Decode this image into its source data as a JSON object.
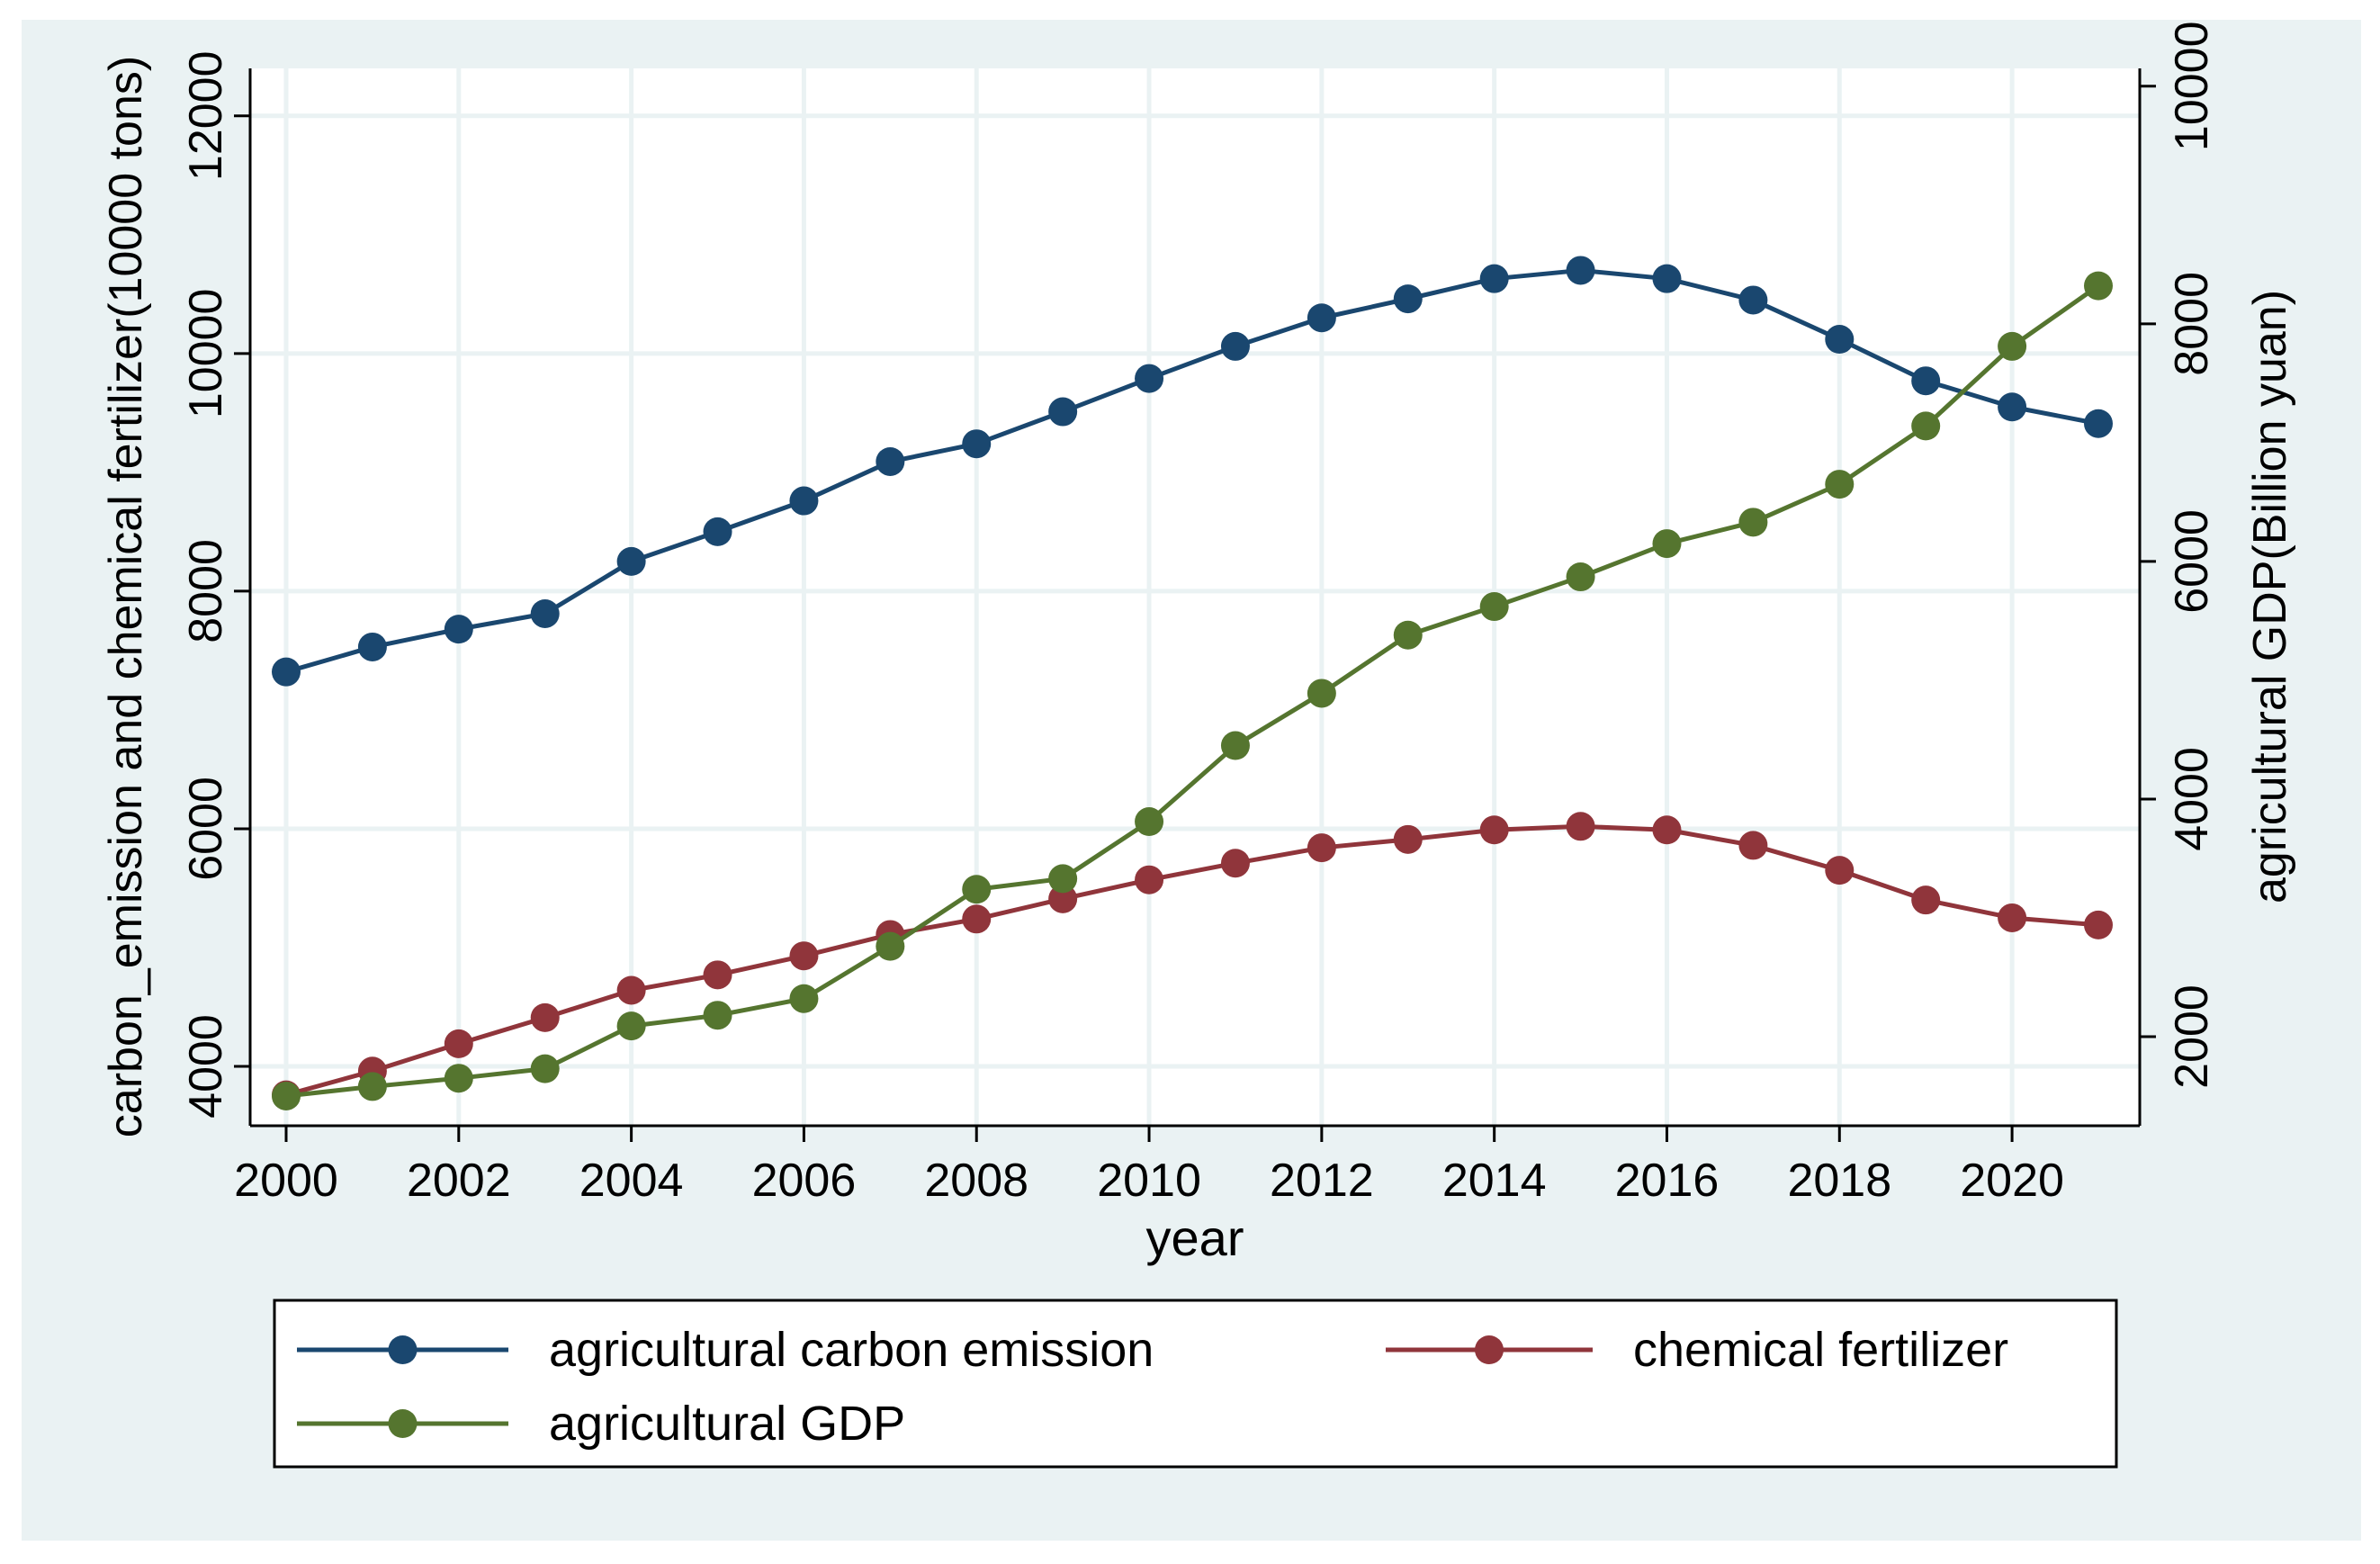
{
  "chart_data": {
    "type": "line",
    "xlabel": "year",
    "ylabel_left": "carbon_emission and chemical fertilizer(10000 tons)",
    "ylabel_right": "agricultural GDP(Billion yuan)",
    "x_ticks": [
      2000,
      2002,
      2004,
      2006,
      2008,
      2010,
      2012,
      2014,
      2016,
      2018,
      2020
    ],
    "ylim_left": [
      3500,
      12400
    ],
    "yticks_left": [
      4000,
      6000,
      8000,
      10000,
      12000
    ],
    "ylim_right": [
      1250,
      10150
    ],
    "yticks_right": [
      2000,
      4000,
      6000,
      8000,
      10000
    ],
    "grid": true,
    "legend_position": "bottom",
    "colors": {
      "outer_background": "#eaf2f3",
      "plot_background": "#ffffff",
      "grid": "#eaf2f3"
    },
    "x": [
      2000,
      2001,
      2002,
      2003,
      2004,
      2005,
      2006,
      2007,
      2008,
      2009,
      2010,
      2011,
      2012,
      2013,
      2014,
      2015,
      2016,
      2017,
      2018,
      2019,
      2020,
      2021
    ],
    "series": [
      {
        "name": "agricultural carbon emission",
        "axis": "left",
        "color": "#1a476f",
        "values": [
          7320,
          7530,
          7680,
          7810,
          8250,
          8500,
          8760,
          9090,
          9240,
          9510,
          9790,
          10060,
          10300,
          10460,
          10630,
          10700,
          10630,
          10450,
          10120,
          9770,
          9550,
          9410
        ]
      },
      {
        "name": "chemical fertilizer",
        "axis": "left",
        "color": "#90353b",
        "values": [
          3760,
          3960,
          4190,
          4410,
          4640,
          4770,
          4930,
          5110,
          5240,
          5410,
          5570,
          5710,
          5840,
          5910,
          5990,
          6020,
          5990,
          5860,
          5650,
          5400,
          5250,
          5190
        ]
      },
      {
        "name": "agricultural GDP",
        "axis": "right",
        "color": "#55752f",
        "values": [
          1500,
          1580,
          1650,
          1730,
          2090,
          2180,
          2320,
          2760,
          3240,
          3330,
          3810,
          4450,
          4890,
          5380,
          5620,
          5870,
          6150,
          6330,
          6650,
          7140,
          7810,
          8320
        ]
      }
    ]
  }
}
